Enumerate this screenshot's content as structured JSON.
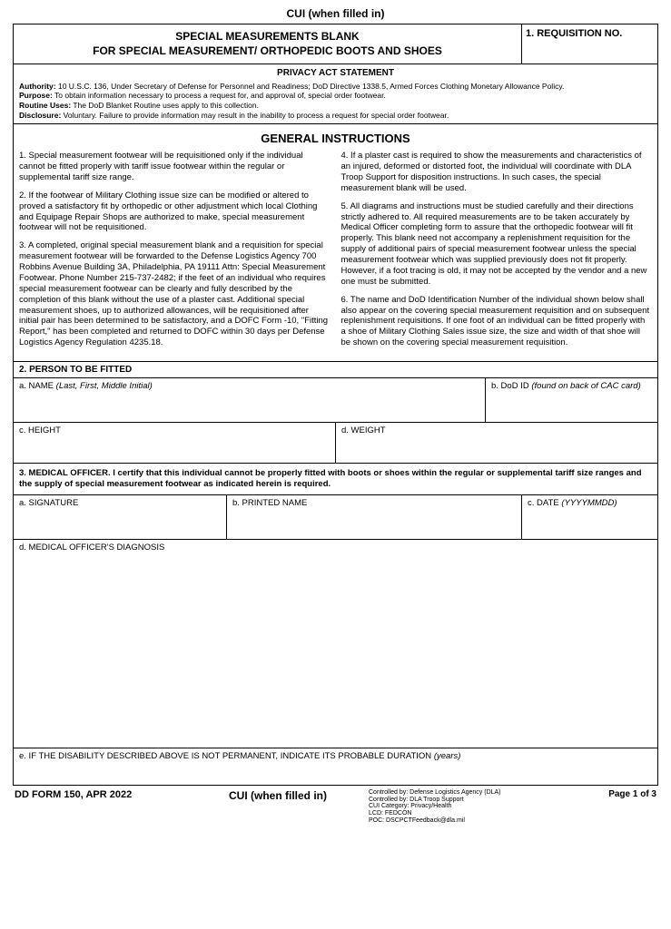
{
  "cui_top": "CUI (when filled in)",
  "header": {
    "title_line1": "SPECIAL MEASUREMENTS BLANK",
    "title_line2": "FOR SPECIAL MEASUREMENT/ ORTHOPEDIC BOOTS AND SHOES",
    "req_label": "1. REQUISITION NO."
  },
  "privacy": {
    "title": "PRIVACY ACT STATEMENT",
    "authority_label": "Authority:",
    "authority": " 10 U.S.C. 136, Under Secretary of Defense for Personnel and Readiness; DoD Directive 1338.5, Armed Forces Clothing Monetary Allowance Policy.",
    "purpose_label": "Purpose:",
    "purpose": " To obtain information necessary to process a request for, and approval of, special order footwear.",
    "routine_label": "Routine Uses:",
    "routine": " The DoD Blanket Routine uses apply to this collection.",
    "disclosure_label": "Disclosure:",
    "disclosure": " Voluntary. Failure to provide information may result in the inability to process a request for special order footwear."
  },
  "gi": {
    "title": "GENERAL INSTRUCTIONS",
    "p1": "1. Special measurement footwear will be requisitioned only if the individual cannot be fitted properly with tariff issue footwear within the regular or supplemental tariff size range.",
    "p2": "2. If the footwear of Military Clothing issue size can be modified or altered to proved a satisfactory fit by orthopedic or other adjustment which local Clothing and Equipage Repair Shops are authorized to make, special measurement footwear will not be requisitioned.",
    "p3": "3. A completed, original special measurement blank and a requisition for special measurement footwear will be forwarded to the Defense Logistics Agency 700 Robbins Avenue Building 3A, Philadelphia, PA  19111 Attn: Special Measurement Footwear. Phone Number 215-737-2482; if the feet of an individual who requires special measurement footwear can be clearly and fully described by the completion of this blank without the use of a plaster cast. Additional special measurement shoes, up to authorized allowances, will be requisitioned after initial pair has been determined to be satisfactory, and a DOFC Form -10, \"Fitting Report,\" has been completed and returned to DOFC within 30 days per Defense Logistics Agency Regulation 4235.18.",
    "p4": "4. If a plaster cast is required to show the measurements and characteristics of an injured, deformed or distorted foot, the individual will coordinate with DLA Troop Support for disposition instructions.  In such cases, the special measurement blank will be used.",
    "p5": "5. All diagrams and instructions must be studied carefully and their directions strictly adhered to. All required measurements are to be taken accurately by Medical Officer completing form to assure that the orthopedic footwear will fit properly. This blank need not accompany a replenishment requisition for the supply of additional pairs of special measurement footwear unless the special measurement footwear which was supplied previously does not fit properly. However, if a foot tracing is old, it may not be accepted by the vendor and a new one must be submitted.",
    "p6": "6. The name and DoD Identification Number of the individual shown below shall also appear on the covering special measurement requisition and on subsequent replenishment requisitions. If one foot of an individual can be fitted properly with a shoe of Military Clothing Sales issue size, the size and width of that shoe will be shown on the covering special measurement requisition."
  },
  "s2": {
    "header": "2. PERSON TO BE FITTED",
    "name_label": "a. NAME ",
    "name_hint": "(Last, First, Middle Initial)",
    "dodid_label": "b. DoD ID ",
    "dodid_hint": "(found on back of CAC card)",
    "height_label": "c. HEIGHT",
    "weight_label": "d. WEIGHT"
  },
  "s3": {
    "cert": "3. MEDICAL OFFICER. I certify that this individual cannot be properly fitted with boots or shoes within the regular or supplemental tariff size ranges and the supply of special measurement footwear as indicated herein is required.",
    "sig_label": "a. SIGNATURE",
    "pname_label": "b. PRINTED NAME",
    "date_label": "c. DATE ",
    "date_hint": "(YYYYMMDD)",
    "diag_label": "d. MEDICAL OFFICER'S DIAGNOSIS",
    "dur_label": "e. IF THE DISABILITY DESCRIBED ABOVE IS NOT PERMANENT, INDICATE ITS PROBABLE DURATION ",
    "dur_hint": "(years)"
  },
  "footer": {
    "form_id": "DD FORM 150, APR 2022",
    "cui": "CUI (when filled in)",
    "c1": "Controlled by: Defense Logistics Agency (DLA)",
    "c2": "Controlled by: DLA Troop Support",
    "c3": "CUI Category: Privacy/Health",
    "c4": "LCD: FEDCON",
    "c5": "POC: DSCPCTFeedback@dla.mil",
    "page": "Page 1 of 3"
  }
}
